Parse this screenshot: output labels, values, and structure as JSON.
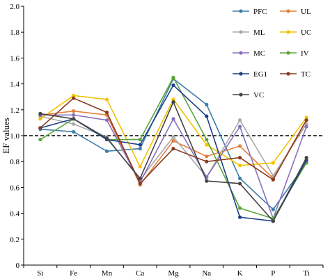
{
  "chart_data": {
    "type": "line",
    "title": "",
    "xlabel": "",
    "ylabel": "EF values",
    "ylim": [
      0,
      2.0
    ],
    "yticks": [
      "0",
      "0.2",
      "0.4",
      "0.6",
      "0.8",
      "1.0",
      "1.2",
      "1.4",
      "1.6",
      "1.8",
      "2.0"
    ],
    "categories": [
      "Si",
      "Fe",
      "Mn",
      "Ca",
      "Mg",
      "Na",
      "K",
      "P",
      "Ti"
    ],
    "reference_line": 1.0,
    "grid": false,
    "legend_position": "top-right",
    "series": [
      {
        "name": "PFC",
        "color": "#3d7fa8",
        "values": [
          1.05,
          1.03,
          0.88,
          0.9,
          1.44,
          1.24,
          0.67,
          0.43,
          0.79
        ]
      },
      {
        "name": "UL",
        "color": "#e57f3a",
        "values": [
          1.16,
          1.19,
          1.16,
          0.62,
          0.96,
          0.84,
          0.92,
          0.67,
          1.12
        ]
      },
      {
        "name": "ML",
        "color": "#a9a9a9",
        "values": [
          1.15,
          1.09,
          0.99,
          0.66,
          0.99,
          0.68,
          1.12,
          0.69,
          1.09
        ]
      },
      {
        "name": "UC",
        "color": "#f2c200",
        "values": [
          1.13,
          1.31,
          1.28,
          0.76,
          1.28,
          0.93,
          0.77,
          0.79,
          1.14
        ]
      },
      {
        "name": "MC",
        "color": "#8a6fc0",
        "values": [
          1.16,
          1.16,
          1.12,
          0.64,
          1.13,
          0.68,
          1.07,
          0.36,
          1.07
        ]
      },
      {
        "name": "IV",
        "color": "#5aa53b",
        "values": [
          0.97,
          1.13,
          0.97,
          0.97,
          1.45,
          0.97,
          0.44,
          0.36,
          0.79
        ]
      },
      {
        "name": "EG1",
        "color": "#1f3f86",
        "values": [
          1.06,
          1.13,
          0.97,
          0.93,
          1.39,
          1.15,
          0.37,
          0.34,
          0.81
        ]
      },
      {
        "name": "TC",
        "color": "#8a3a1e",
        "values": [
          1.06,
          1.29,
          1.18,
          0.63,
          0.9,
          0.8,
          0.83,
          0.66,
          1.12
        ]
      },
      {
        "name": "VC",
        "color": "#444444",
        "values": [
          1.17,
          1.13,
          0.98,
          0.67,
          1.26,
          0.65,
          0.63,
          0.34,
          0.83
        ]
      }
    ]
  }
}
